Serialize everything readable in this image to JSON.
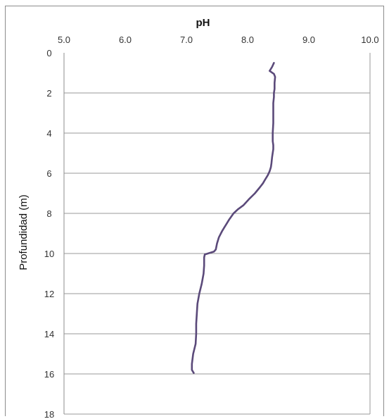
{
  "chart_data": {
    "type": "line",
    "title": "pH",
    "xlabel": "pH",
    "ylabel": "Profundidad (m)",
    "x_axis_position": "top",
    "y_axis_inverted": true,
    "xlim": [
      5.0,
      10.0
    ],
    "ylim": [
      0,
      18
    ],
    "xticks": [
      "5.0",
      "6.0",
      "7.0",
      "8.0",
      "9.0",
      "10.0"
    ],
    "yticks": [
      "0",
      "2",
      "4",
      "6",
      "8",
      "10",
      "12",
      "14",
      "16",
      "18"
    ],
    "grid": "horizontal",
    "line_color": "#5b4a7a",
    "series": [
      {
        "x": [
          8.43,
          8.4,
          8.36,
          8.43,
          8.45,
          8.44,
          8.44,
          8.43,
          8.43,
          8.42,
          8.42,
          8.42,
          8.41,
          8.41,
          8.41,
          8.42,
          8.42,
          8.4,
          8.39,
          8.38,
          8.36,
          8.33,
          8.29,
          8.25,
          8.2,
          8.12,
          8.02,
          7.93,
          7.84,
          7.77,
          7.7,
          7.66,
          7.62,
          7.58,
          7.53,
          7.5,
          7.48,
          7.45,
          7.3,
          7.29,
          7.29,
          7.29,
          7.28,
          7.25,
          7.21,
          7.18,
          7.17,
          7.16,
          7.16,
          7.15,
          7.11,
          7.09,
          7.09,
          7.12
        ],
        "y": [
          0.5,
          0.7,
          0.9,
          1.05,
          1.2,
          1.5,
          1.8,
          2.0,
          2.2,
          2.5,
          3.0,
          3.5,
          4.0,
          4.2,
          4.4,
          4.6,
          4.8,
          5.2,
          5.5,
          5.7,
          5.9,
          6.1,
          6.3,
          6.5,
          6.7,
          7.0,
          7.3,
          7.6,
          7.8,
          8.0,
          8.3,
          8.5,
          8.7,
          8.9,
          9.2,
          9.5,
          9.8,
          9.9,
          10.05,
          10.2,
          10.4,
          10.6,
          11.0,
          11.5,
          12.0,
          12.5,
          13.0,
          13.5,
          14.0,
          14.5,
          15.0,
          15.5,
          15.8,
          15.95
        ]
      }
    ]
  }
}
